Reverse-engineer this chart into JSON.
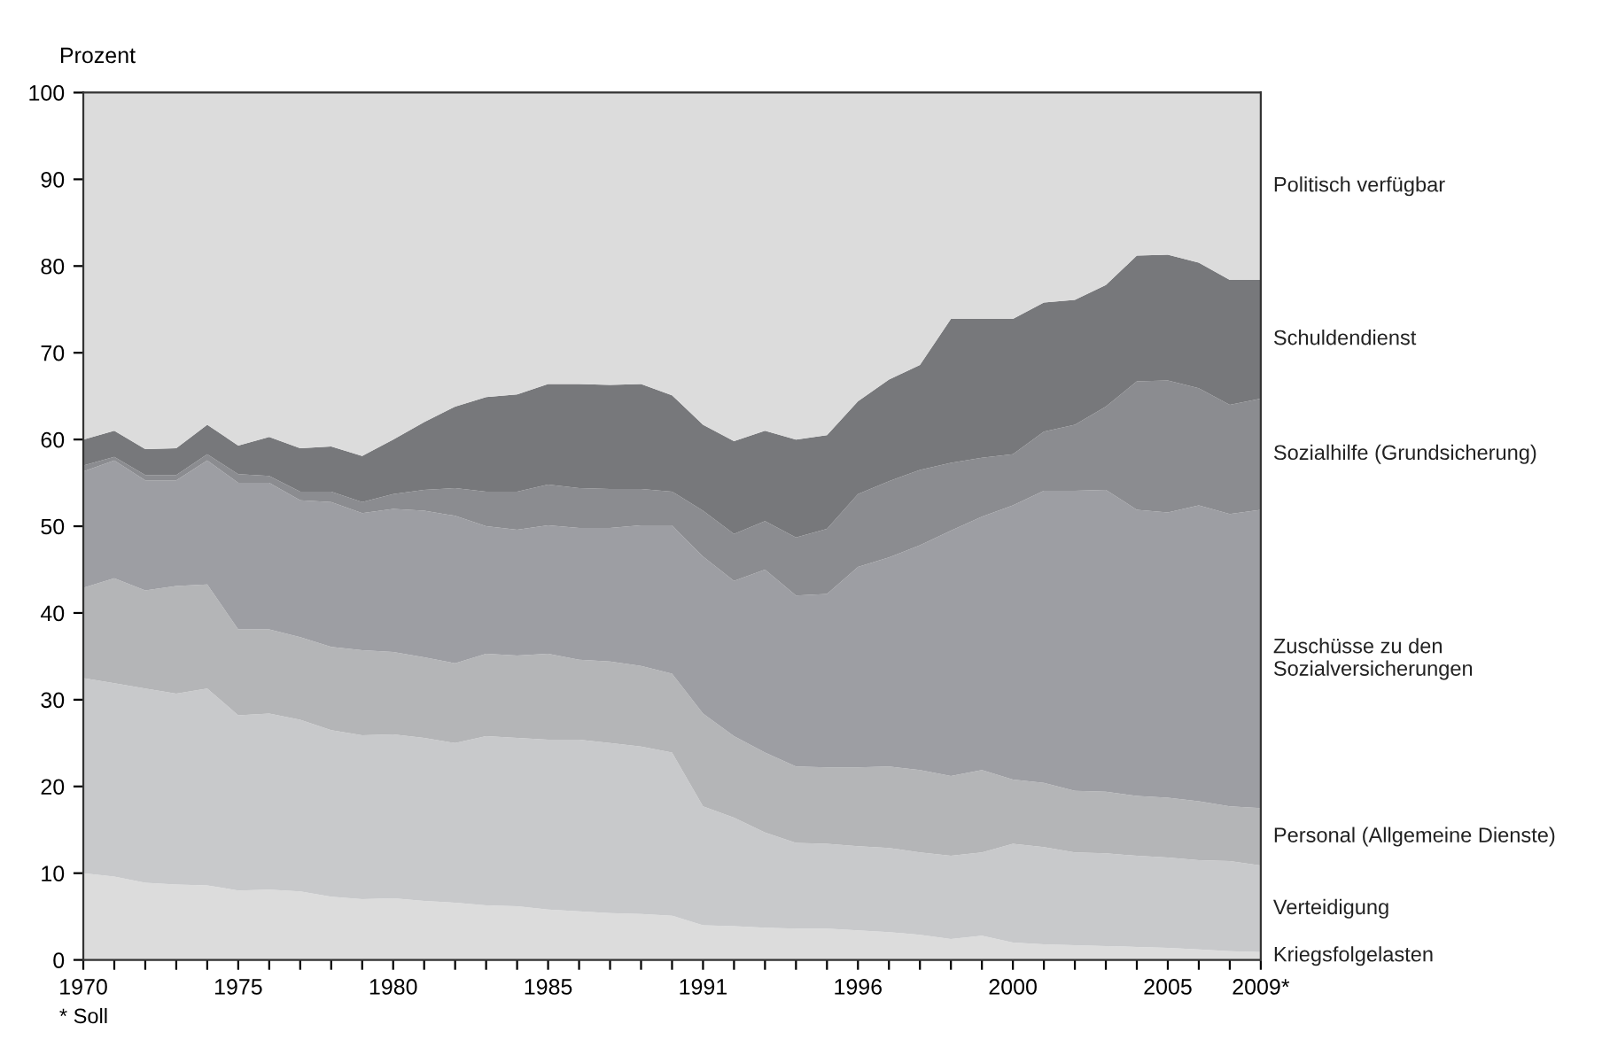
{
  "chart_data": {
    "type": "area",
    "stacked": true,
    "ylabel": "Prozent",
    "categories": [
      "1970",
      null,
      null,
      null,
      null,
      "1975",
      null,
      null,
      null,
      null,
      "1980",
      null,
      null,
      null,
      null,
      "1985",
      null,
      null,
      null,
      null,
      "1991",
      null,
      null,
      null,
      null,
      "1996",
      null,
      null,
      null,
      null,
      "2000",
      null,
      null,
      null,
      null,
      "2005",
      null,
      null,
      "2009*"
    ],
    "ylim": [
      0,
      100
    ],
    "yticks": [
      0,
      10,
      20,
      30,
      40,
      50,
      60,
      70,
      80,
      90,
      100
    ],
    "grid": false,
    "legend": false,
    "annotations": [
      "* Soll"
    ],
    "series": [
      {
        "name": "Kriegsfolgelasten",
        "color": "#dcdcdc",
        "values": [
          10.0,
          9.6,
          8.9,
          8.7,
          8.6,
          8.0,
          8.1,
          7.9,
          7.3,
          7.0,
          7.1,
          6.8,
          6.6,
          6.3,
          6.2,
          5.8,
          5.6,
          5.4,
          5.3,
          5.1,
          4.0,
          3.9,
          3.7,
          3.6,
          3.6,
          3.4,
          3.2,
          2.9,
          2.4,
          2.8,
          2.0,
          1.8,
          1.7,
          1.6,
          1.5,
          1.4,
          1.2,
          1.0,
          0.9
        ]
      },
      {
        "name": "Verteidigung",
        "color": "#c8c9cb",
        "values": [
          22.5,
          22.3,
          22.4,
          22.0,
          22.7,
          20.2,
          20.3,
          19.8,
          19.2,
          18.9,
          18.9,
          18.8,
          18.4,
          19.5,
          19.4,
          19.6,
          19.8,
          19.6,
          19.3,
          18.8,
          13.7,
          12.5,
          11.0,
          9.9,
          9.8,
          9.7,
          9.7,
          9.5,
          9.6,
          9.6,
          11.4,
          11.2,
          10.7,
          10.7,
          10.5,
          10.4,
          10.3,
          10.4,
          10.0
        ]
      },
      {
        "name": "Personal (Allgemeine Dienste)",
        "color": "#b4b5b7",
        "values": [
          10.4,
          12.1,
          11.3,
          12.4,
          12.0,
          9.9,
          9.7,
          9.5,
          9.6,
          9.8,
          9.5,
          9.3,
          9.2,
          9.5,
          9.5,
          9.9,
          9.2,
          9.4,
          9.3,
          9.1,
          10.7,
          9.4,
          9.2,
          8.8,
          8.8,
          9.1,
          9.4,
          9.5,
          9.2,
          9.5,
          7.4,
          7.4,
          7.1,
          7.1,
          6.9,
          6.9,
          6.8,
          6.3,
          6.6
        ]
      },
      {
        "name": "Zuschüsse zu den\nSozialversicherungen",
        "color": "#9d9ea3",
        "values": [
          13.4,
          13.6,
          12.7,
          12.2,
          14.3,
          16.9,
          16.9,
          15.8,
          16.7,
          15.8,
          16.5,
          16.9,
          17.0,
          14.7,
          14.5,
          14.8,
          15.2,
          15.4,
          16.2,
          17.1,
          18.1,
          17.9,
          21.1,
          19.7,
          20.0,
          23.1,
          24.1,
          25.9,
          28.3,
          29.2,
          31.6,
          33.7,
          34.6,
          34.8,
          33.0,
          32.9,
          34.1,
          33.7,
          34.4
        ]
      },
      {
        "name": "Sozialhilfe (Grundsicherung)",
        "color": "#8b8c90",
        "values": [
          0.7,
          0.4,
          0.6,
          0.6,
          0.7,
          1.0,
          0.8,
          1.0,
          1.2,
          1.3,
          1.7,
          2.4,
          3.2,
          4.0,
          4.4,
          4.7,
          4.6,
          4.5,
          4.2,
          3.9,
          5.3,
          5.4,
          5.6,
          6.7,
          7.5,
          8.4,
          8.8,
          8.7,
          7.8,
          6.8,
          5.9,
          6.8,
          7.6,
          9.6,
          14.8,
          15.2,
          13.5,
          12.6,
          12.8
        ]
      },
      {
        "name": "Schuldendienst",
        "color": "#77787b",
        "values": [
          3.0,
          3.0,
          3.0,
          3.1,
          3.4,
          3.3,
          4.5,
          5.0,
          5.2,
          5.3,
          6.3,
          7.8,
          9.4,
          10.9,
          11.2,
          11.6,
          12.0,
          12.0,
          12.1,
          11.1,
          9.9,
          10.7,
          10.4,
          11.3,
          10.8,
          10.7,
          11.7,
          12.1,
          16.6,
          16.0,
          15.6,
          14.9,
          14.4,
          14.0,
          14.5,
          14.5,
          14.5,
          14.4,
          13.7
        ]
      },
      {
        "name": "Politisch verfügbar",
        "color": "#dcdcdc",
        "values": [
          40.0,
          39.0,
          41.1,
          41.0,
          38.3,
          40.7,
          39.7,
          41.0,
          40.8,
          41.9,
          40.0,
          38.0,
          36.2,
          35.1,
          34.8,
          33.6,
          33.6,
          33.7,
          33.6,
          34.9,
          38.3,
          40.2,
          39.0,
          40.0,
          39.5,
          35.6,
          33.1,
          31.4,
          26.1,
          26.1,
          26.1,
          24.2,
          23.9,
          22.2,
          18.8,
          18.7,
          19.6,
          21.6,
          21.6
        ]
      }
    ]
  }
}
